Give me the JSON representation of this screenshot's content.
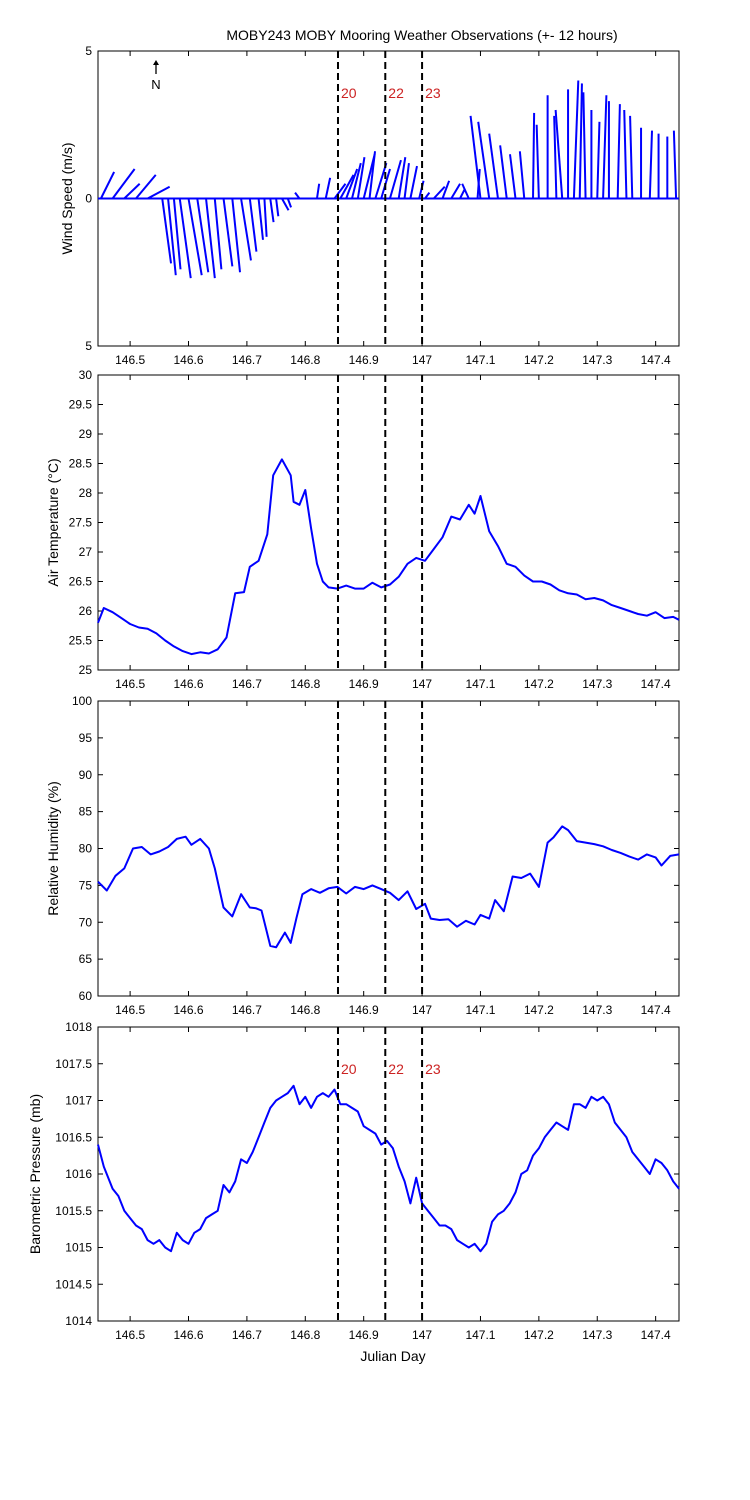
{
  "title": "MOBY243 MOBY Mooring Weather Observations (+- 12 hours)",
  "colors": {
    "series": "#0000ff",
    "event": "#000000",
    "event_label": "#cc2222"
  },
  "north_label": "N",
  "events": {
    "x": [
      146.856,
      146.937,
      147.0
    ],
    "labels": [
      "20",
      "22",
      "23"
    ]
  },
  "x_ticks": [
    146.5,
    146.6,
    146.7,
    146.8,
    146.9,
    147,
    147.1,
    147.2,
    147.3,
    147.4
  ],
  "x_tick_labels": [
    "146.5",
    "146.6",
    "146.7",
    "146.8",
    "146.9",
    "147",
    "147.1",
    "147.2",
    "147.3",
    "147.4"
  ],
  "xlim": [
    146.445,
    147.44
  ],
  "xlabel": "Julian Day",
  "chart_data": [
    {
      "type": "line",
      "name": "wind",
      "ylabel": "Wind Speed (m/s)",
      "ylim": [
        -5,
        5
      ],
      "y_tick_labels": [
        "5",
        "0",
        "5"
      ],
      "show_event_labels": true,
      "vectors": [
        [
          146.45,
          0.6,
          0.9
        ],
        [
          146.47,
          1.0,
          1.0
        ],
        [
          146.49,
          0.7,
          0.5
        ],
        [
          146.51,
          0.9,
          0.8
        ],
        [
          146.53,
          1.0,
          0.4
        ],
        [
          146.555,
          0.4,
          -2.2
        ],
        [
          146.565,
          0.35,
          -2.6
        ],
        [
          146.575,
          0.3,
          -2.4
        ],
        [
          146.585,
          0.5,
          -2.7
        ],
        [
          146.6,
          0.6,
          -2.6
        ],
        [
          146.615,
          0.5,
          -2.5
        ],
        [
          146.63,
          0.4,
          -2.7
        ],
        [
          146.645,
          0.3,
          -2.4
        ],
        [
          146.66,
          0.4,
          -2.3
        ],
        [
          146.675,
          0.35,
          -2.5
        ],
        [
          146.69,
          0.45,
          -2.1
        ],
        [
          146.705,
          0.3,
          -1.8
        ],
        [
          146.72,
          0.2,
          -1.4
        ],
        [
          146.73,
          0.1,
          -1.3
        ],
        [
          146.74,
          0.15,
          -0.8
        ],
        [
          146.75,
          0.1,
          -0.6
        ],
        [
          146.76,
          0.3,
          -0.4
        ],
        [
          146.77,
          0.15,
          -0.3
        ],
        [
          146.79,
          -0.2,
          0.2
        ],
        [
          146.82,
          0.1,
          0.5
        ],
        [
          146.835,
          0.2,
          0.7
        ],
        [
          146.85,
          0.5,
          0.5
        ],
        [
          146.86,
          0.6,
          0.8
        ],
        [
          146.87,
          0.5,
          1.0
        ],
        [
          146.88,
          0.4,
          1.2
        ],
        [
          146.89,
          0.3,
          1.4
        ],
        [
          146.9,
          0.5,
          1.5
        ],
        [
          146.91,
          0.25,
          1.6
        ],
        [
          146.92,
          0.5,
          1.2
        ],
        [
          146.93,
          0.4,
          1.0
        ],
        [
          146.945,
          0.5,
          1.3
        ],
        [
          146.96,
          0.3,
          1.4
        ],
        [
          146.97,
          0.2,
          1.2
        ],
        [
          146.98,
          0.3,
          1.1
        ],
        [
          146.995,
          0.2,
          0.6
        ],
        [
          147.005,
          0.2,
          0.2
        ],
        [
          147.02,
          0.5,
          0.4
        ],
        [
          147.035,
          0.3,
          0.6
        ],
        [
          147.05,
          0.4,
          0.5
        ],
        [
          147.065,
          0.2,
          0.3
        ],
        [
          147.08,
          -0.3,
          0.5
        ],
        [
          147.095,
          0.1,
          1.0
        ],
        [
          147.1,
          -0.45,
          2.8
        ],
        [
          147.115,
          -0.5,
          2.6
        ],
        [
          147.13,
          -0.4,
          2.2
        ],
        [
          147.145,
          -0.3,
          1.8
        ],
        [
          147.16,
          -0.25,
          1.5
        ],
        [
          147.175,
          -0.2,
          1.6
        ],
        [
          147.19,
          0.05,
          2.9
        ],
        [
          147.2,
          -0.1,
          2.5
        ],
        [
          147.215,
          0.0,
          3.5
        ],
        [
          147.23,
          -0.1,
          2.8
        ],
        [
          147.24,
          -0.3,
          3.0
        ],
        [
          147.25,
          0.0,
          3.7
        ],
        [
          147.26,
          0.2,
          4.0
        ],
        [
          147.27,
          0.1,
          3.9
        ],
        [
          147.28,
          -0.1,
          3.6
        ],
        [
          147.29,
          0.0,
          3.0
        ],
        [
          147.3,
          0.1,
          2.6
        ],
        [
          147.31,
          0.15,
          3.5
        ],
        [
          147.32,
          0.0,
          3.3
        ],
        [
          147.335,
          0.1,
          3.2
        ],
        [
          147.35,
          -0.1,
          3.0
        ],
        [
          147.36,
          -0.1,
          2.8
        ],
        [
          147.375,
          0.0,
          2.4
        ],
        [
          147.39,
          0.1,
          2.3
        ],
        [
          147.405,
          0.0,
          2.2
        ],
        [
          147.42,
          0.0,
          2.1
        ],
        [
          147.435,
          -0.1,
          2.3
        ]
      ]
    },
    {
      "type": "line",
      "name": "air_temperature",
      "ylabel": "Air Temperature (°C)",
      "ylim": [
        25,
        30
      ],
      "y_tick_labels": [
        "25",
        "25.5",
        "26",
        "26.5",
        "27",
        "27.5",
        "28",
        "28.5",
        "29",
        "29.5",
        "30"
      ],
      "x": [
        146.445,
        146.455,
        146.47,
        146.485,
        146.5,
        146.515,
        146.53,
        146.545,
        146.56,
        146.575,
        146.59,
        146.605,
        146.62,
        146.635,
        146.65,
        146.665,
        146.68,
        146.695,
        146.705,
        146.72,
        146.735,
        146.745,
        146.76,
        146.775,
        146.78,
        146.79,
        146.8,
        146.81,
        146.82,
        146.83,
        146.84,
        146.855,
        146.87,
        146.885,
        146.9,
        146.915,
        146.93,
        146.945,
        146.96,
        146.975,
        146.99,
        147.005,
        147.02,
        147.035,
        147.05,
        147.065,
        147.08,
        147.09,
        147.1,
        147.115,
        147.13,
        147.145,
        147.16,
        147.175,
        147.19,
        147.205,
        147.22,
        147.235,
        147.25,
        147.265,
        147.28,
        147.295,
        147.31,
        147.325,
        147.34,
        147.355,
        147.37,
        147.385,
        147.4,
        147.415,
        147.43,
        147.44
      ],
      "y": [
        25.8,
        26.05,
        25.98,
        25.88,
        25.78,
        25.72,
        25.7,
        25.62,
        25.5,
        25.4,
        25.32,
        25.27,
        25.3,
        25.28,
        25.35,
        25.55,
        26.3,
        26.32,
        26.75,
        26.85,
        27.3,
        28.3,
        28.57,
        28.3,
        27.85,
        27.8,
        28.05,
        27.4,
        26.8,
        26.5,
        26.4,
        26.38,
        26.43,
        26.38,
        26.38,
        26.48,
        26.4,
        26.45,
        26.58,
        26.8,
        26.9,
        26.85,
        27.05,
        27.25,
        27.6,
        27.55,
        27.8,
        27.65,
        27.95,
        27.35,
        27.1,
        26.8,
        26.75,
        26.6,
        26.5,
        26.5,
        26.45,
        26.35,
        26.3,
        26.28,
        26.2,
        26.22,
        26.18,
        26.1,
        26.05,
        26.0,
        25.95,
        25.92,
        25.98,
        25.88,
        25.9,
        25.85
      ]
    },
    {
      "type": "line",
      "name": "relative_humidity",
      "ylabel": "Relative Humidity (%)",
      "ylim": [
        60,
        100
      ],
      "y_tick_labels": [
        "60",
        "65",
        "70",
        "75",
        "80",
        "85",
        "90",
        "95",
        "100"
      ],
      "x": [
        146.445,
        146.46,
        146.475,
        146.49,
        146.505,
        146.52,
        146.535,
        146.55,
        146.565,
        146.58,
        146.595,
        146.605,
        146.62,
        146.635,
        146.645,
        146.66,
        146.675,
        146.69,
        146.705,
        146.715,
        146.725,
        146.74,
        146.75,
        146.765,
        146.775,
        146.785,
        146.795,
        146.81,
        146.825,
        146.84,
        146.855,
        146.87,
        146.885,
        146.9,
        146.915,
        146.93,
        146.945,
        146.96,
        146.975,
        146.99,
        147.005,
        147.015,
        147.03,
        147.045,
        147.06,
        147.075,
        147.09,
        147.1,
        147.115,
        147.125,
        147.14,
        147.155,
        147.17,
        147.185,
        147.2,
        147.215,
        147.225,
        147.24,
        147.25,
        147.265,
        147.28,
        147.295,
        147.31,
        147.325,
        147.34,
        147.355,
        147.37,
        147.385,
        147.4,
        147.41,
        147.425,
        147.44
      ],
      "y": [
        75.5,
        74.3,
        76.3,
        77.3,
        80.0,
        80.2,
        79.2,
        79.6,
        80.2,
        81.3,
        81.6,
        80.5,
        81.3,
        80.0,
        77.3,
        72.0,
        70.8,
        73.8,
        72.0,
        71.9,
        71.6,
        66.8,
        66.6,
        68.6,
        67.2,
        70.6,
        73.8,
        74.5,
        74.0,
        74.6,
        74.8,
        73.9,
        74.8,
        74.5,
        75.0,
        74.5,
        74.0,
        73.0,
        74.2,
        71.8,
        72.5,
        70.5,
        70.3,
        70.4,
        69.4,
        70.2,
        69.7,
        71.0,
        70.5,
        73.0,
        71.5,
        76.2,
        76.0,
        76.6,
        74.8,
        80.8,
        81.5,
        83.0,
        82.5,
        81.0,
        80.8,
        80.6,
        80.3,
        79.8,
        79.4,
        78.9,
        78.5,
        79.2,
        78.8,
        77.7,
        79.0,
        79.2
      ]
    },
    {
      "type": "line",
      "name": "barometric_pressure",
      "ylabel": "Barometric Pressure (mb)",
      "ylim": [
        1014,
        1018
      ],
      "y_tick_labels": [
        "1014",
        "1014.5",
        "1015",
        "1015.5",
        "1016",
        "1016.5",
        "1017",
        "1017.5",
        "1018"
      ],
      "show_event_labels": true,
      "x": [
        146.445,
        146.455,
        146.47,
        146.48,
        146.49,
        146.5,
        146.51,
        146.52,
        146.53,
        146.54,
        146.55,
        146.56,
        146.57,
        146.58,
        146.59,
        146.6,
        146.61,
        146.62,
        146.63,
        146.64,
        146.65,
        146.66,
        146.67,
        146.68,
        146.69,
        146.7,
        146.71,
        146.72,
        146.73,
        146.74,
        146.75,
        146.76,
        146.77,
        146.78,
        146.79,
        146.8,
        146.81,
        146.82,
        146.83,
        146.84,
        146.85,
        146.86,
        146.87,
        146.88,
        146.89,
        146.9,
        146.91,
        146.92,
        146.93,
        146.94,
        146.95,
        146.96,
        146.97,
        146.98,
        146.99,
        147.0,
        147.01,
        147.02,
        147.03,
        147.04,
        147.05,
        147.06,
        147.07,
        147.08,
        147.09,
        147.1,
        147.11,
        147.12,
        147.13,
        147.14,
        147.15,
        147.16,
        147.17,
        147.18,
        147.19,
        147.2,
        147.21,
        147.22,
        147.23,
        147.24,
        147.25,
        147.26,
        147.27,
        147.28,
        147.29,
        147.3,
        147.31,
        147.32,
        147.33,
        147.34,
        147.35,
        147.36,
        147.37,
        147.38,
        147.39,
        147.4,
        147.41,
        147.42,
        147.43,
        147.44
      ],
      "y": [
        1016.4,
        1016.1,
        1015.8,
        1015.7,
        1015.5,
        1015.4,
        1015.3,
        1015.25,
        1015.1,
        1015.05,
        1015.1,
        1015.0,
        1014.95,
        1015.2,
        1015.1,
        1015.05,
        1015.2,
        1015.25,
        1015.4,
        1015.45,
        1015.5,
        1015.85,
        1015.75,
        1015.9,
        1016.2,
        1016.15,
        1016.3,
        1016.5,
        1016.7,
        1016.9,
        1017.0,
        1017.05,
        1017.1,
        1017.2,
        1016.95,
        1017.05,
        1016.9,
        1017.05,
        1017.1,
        1017.05,
        1017.15,
        1016.95,
        1016.95,
        1016.9,
        1016.85,
        1016.65,
        1016.6,
        1016.55,
        1016.4,
        1016.45,
        1016.35,
        1016.1,
        1015.9,
        1015.6,
        1015.95,
        1015.6,
        1015.5,
        1015.4,
        1015.3,
        1015.3,
        1015.25,
        1015.1,
        1015.05,
        1015.0,
        1015.05,
        1014.95,
        1015.05,
        1015.35,
        1015.45,
        1015.5,
        1015.6,
        1015.75,
        1016.0,
        1016.05,
        1016.25,
        1016.35,
        1016.5,
        1016.6,
        1016.7,
        1016.65,
        1016.6,
        1016.95,
        1016.95,
        1016.9,
        1017.05,
        1017.0,
        1017.05,
        1016.95,
        1016.7,
        1016.6,
        1016.5,
        1016.3,
        1016.2,
        1016.1,
        1016.0,
        1016.2,
        1016.15,
        1016.05,
        1015.9,
        1015.8
      ]
    }
  ]
}
